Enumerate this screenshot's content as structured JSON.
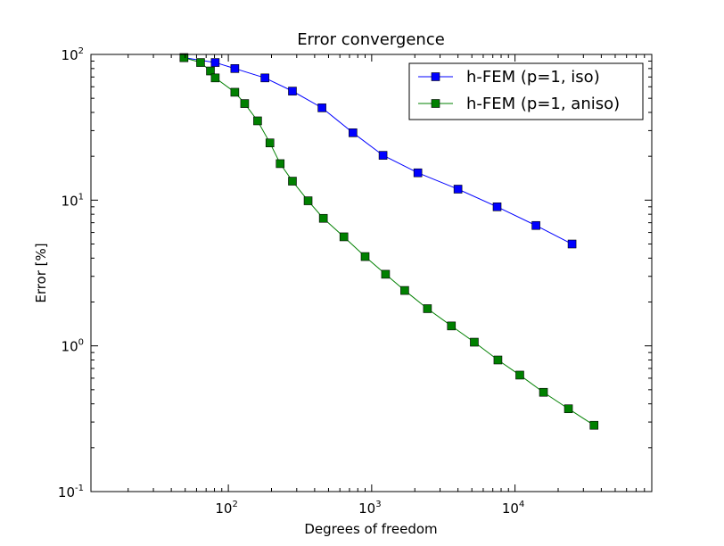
{
  "chart_data": {
    "type": "line",
    "title": "Error convergence",
    "xlabel": "Degrees of freedom",
    "ylabel": "Error [%]",
    "xscale": "log",
    "yscale": "log",
    "xlim": [
      11,
      90000
    ],
    "ylim": [
      0.1,
      100
    ],
    "grid": false,
    "legend_position": "top-right",
    "x_ticks": [
      {
        "value": 100,
        "base": "10",
        "exp": "2"
      },
      {
        "value": 1000,
        "base": "10",
        "exp": "3"
      },
      {
        "value": 10000,
        "base": "10",
        "exp": "4"
      }
    ],
    "y_ticks": [
      {
        "value": 100,
        "base": "10",
        "exp": "2"
      },
      {
        "value": 10,
        "base": "10",
        "exp": "1"
      },
      {
        "value": 1,
        "base": "10",
        "exp": "0"
      },
      {
        "value": 0.1,
        "base": "10",
        "exp": "-1"
      }
    ],
    "series": [
      {
        "name": "h-FEM (p=1, iso)",
        "color": "#0000ff",
        "marker": "square",
        "x": [
          49,
          81,
          111,
          180,
          280,
          450,
          740,
          1200,
          2100,
          4000,
          7500,
          14000,
          25000
        ],
        "y": [
          95,
          88,
          80,
          69,
          56,
          43,
          29,
          20.3,
          15.4,
          11.9,
          9,
          6.7,
          5
        ]
      },
      {
        "name": "h-FEM (p=1, aniso)",
        "color": "#008000",
        "marker": "square",
        "x": [
          49,
          64,
          75,
          81,
          111,
          130,
          160,
          195,
          230,
          280,
          360,
          460,
          640,
          900,
          1250,
          1700,
          2450,
          3600,
          5200,
          7600,
          10800,
          15800,
          23600,
          35600
        ],
        "y": [
          95,
          88,
          77,
          69,
          55,
          46,
          35,
          24.7,
          17.8,
          13.5,
          9.9,
          7.5,
          5.6,
          4.1,
          3.1,
          2.4,
          1.8,
          1.37,
          1.06,
          0.8,
          0.63,
          0.48,
          0.37,
          0.285
        ]
      }
    ]
  }
}
